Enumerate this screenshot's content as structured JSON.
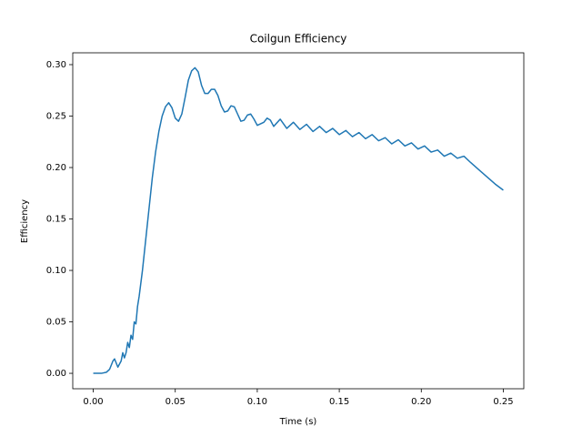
{
  "chart_data": {
    "type": "line",
    "title": "Coilgun Efficiency",
    "x_label": "Time (s)",
    "y_label": "Efficiency",
    "color": "#1f77b4",
    "x": [
      0.0,
      0.005,
      0.008,
      0.01,
      0.012,
      0.013,
      0.015,
      0.017,
      0.018,
      0.019,
      0.02,
      0.021,
      0.022,
      0.023,
      0.024,
      0.025,
      0.026,
      0.027,
      0.028,
      0.03,
      0.032,
      0.034,
      0.036,
      0.038,
      0.04,
      0.042,
      0.044,
      0.046,
      0.048,
      0.05,
      0.052,
      0.054,
      0.056,
      0.058,
      0.06,
      0.062,
      0.064,
      0.066,
      0.068,
      0.07,
      0.072,
      0.074,
      0.076,
      0.078,
      0.08,
      0.082,
      0.084,
      0.086,
      0.088,
      0.09,
      0.092,
      0.094,
      0.096,
      0.098,
      0.1,
      0.104,
      0.106,
      0.108,
      0.11,
      0.114,
      0.118,
      0.122,
      0.126,
      0.13,
      0.134,
      0.138,
      0.142,
      0.146,
      0.15,
      0.154,
      0.158,
      0.162,
      0.166,
      0.17,
      0.174,
      0.178,
      0.182,
      0.186,
      0.19,
      0.194,
      0.198,
      0.202,
      0.206,
      0.21,
      0.214,
      0.218,
      0.222,
      0.226,
      0.23,
      0.235,
      0.24,
      0.245,
      0.25
    ],
    "values": [
      0.0,
      0.0,
      0.001,
      0.004,
      0.012,
      0.014,
      0.006,
      0.012,
      0.02,
      0.015,
      0.02,
      0.03,
      0.025,
      0.037,
      0.033,
      0.05,
      0.048,
      0.065,
      0.075,
      0.1,
      0.13,
      0.16,
      0.19,
      0.215,
      0.235,
      0.25,
      0.259,
      0.263,
      0.258,
      0.248,
      0.245,
      0.252,
      0.268,
      0.285,
      0.294,
      0.297,
      0.293,
      0.28,
      0.272,
      0.272,
      0.276,
      0.276,
      0.27,
      0.26,
      0.254,
      0.255,
      0.26,
      0.259,
      0.252,
      0.245,
      0.246,
      0.251,
      0.252,
      0.247,
      0.241,
      0.244,
      0.248,
      0.246,
      0.24,
      0.247,
      0.238,
      0.244,
      0.237,
      0.242,
      0.235,
      0.24,
      0.234,
      0.238,
      0.232,
      0.236,
      0.23,
      0.234,
      0.228,
      0.232,
      0.226,
      0.229,
      0.223,
      0.227,
      0.221,
      0.224,
      0.218,
      0.221,
      0.215,
      0.217,
      0.211,
      0.214,
      0.209,
      0.211,
      0.205,
      0.198,
      0.191,
      0.184,
      0.178
    ],
    "xlim": [
      -0.0125,
      0.2625
    ],
    "xticks": [
      {
        "value": 0,
        "label": "0.00"
      },
      {
        "value": 0.05,
        "label": "0.05"
      },
      {
        "value": 0.1,
        "label": "0.10"
      },
      {
        "value": 0.15,
        "label": "0.15"
      },
      {
        "value": 0.2,
        "label": "0.20"
      },
      {
        "value": 0.25,
        "label": "0.25"
      }
    ],
    "ylim": [
      -0.015,
      0.3115
    ],
    "yticks": [
      {
        "value": 0,
        "label": "0.00"
      },
      {
        "value": 0.05,
        "label": "0.05"
      },
      {
        "value": 0.1,
        "label": "0.10"
      },
      {
        "value": 0.15,
        "label": "0.15"
      },
      {
        "value": 0.2,
        "label": "0.20"
      },
      {
        "value": 0.25,
        "label": "0.25"
      },
      {
        "value": 0.3,
        "label": "0.30"
      }
    ]
  }
}
